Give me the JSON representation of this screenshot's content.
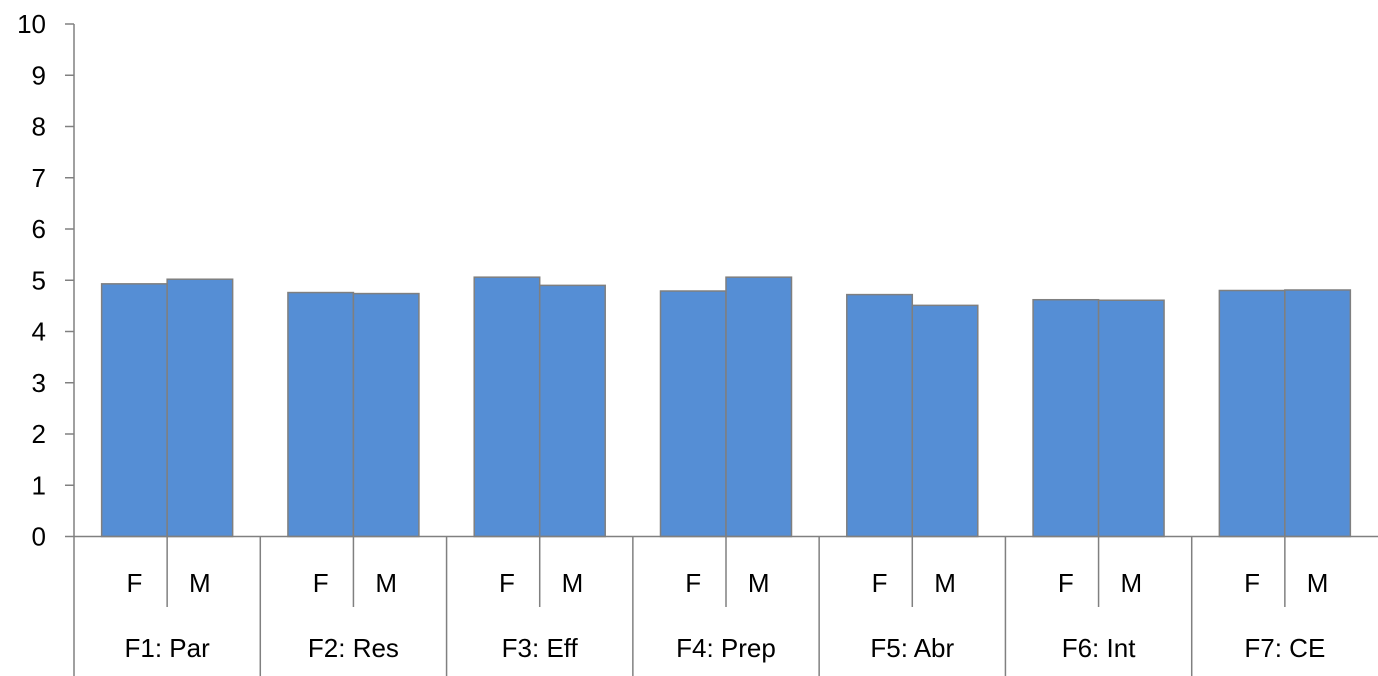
{
  "chart_data": {
    "type": "bar",
    "title": "",
    "xlabel": "",
    "ylabel": "",
    "ylim": [
      0,
      10
    ],
    "yticks": [
      0,
      1,
      2,
      3,
      4,
      5,
      6,
      7,
      8,
      9,
      10
    ],
    "grid": false,
    "legend": "none",
    "bar_color": "#558ED5",
    "bar_outline_color": "#7F7F7F",
    "axis_color": "#808080",
    "groups": [
      {
        "label": "F1: Par",
        "categories": [
          "F",
          "M"
        ],
        "values": [
          4.93,
          5.02
        ]
      },
      {
        "label": "F2: Res",
        "categories": [
          "F",
          "M"
        ],
        "values": [
          4.76,
          4.74
        ]
      },
      {
        "label": "F3: Eff",
        "categories": [
          "F",
          "M"
        ],
        "values": [
          5.06,
          4.9
        ]
      },
      {
        "label": "F4: Prep",
        "categories": [
          "F",
          "M"
        ],
        "values": [
          4.79,
          5.06
        ]
      },
      {
        "label": "F5: Abr",
        "categories": [
          "F",
          "M"
        ],
        "values": [
          4.72,
          4.51
        ]
      },
      {
        "label": "F6: Int",
        "categories": [
          "F",
          "M"
        ],
        "values": [
          4.62,
          4.61
        ]
      },
      {
        "label": "F7: CE",
        "categories": [
          "F",
          "M"
        ],
        "values": [
          4.8,
          4.81
        ]
      }
    ]
  }
}
